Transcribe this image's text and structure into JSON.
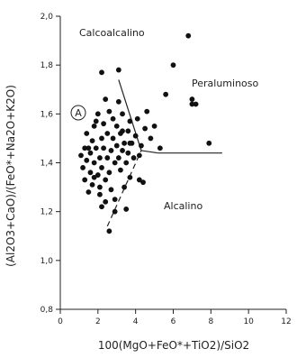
{
  "chart_data": {
    "type": "scatter",
    "xlabel": "100(MgO+FeO*+TiO2)/SiO2",
    "ylabel": "(Al2O3+CaO)/(FeO*+Na2O+K2O)",
    "xlim": [
      0,
      12
    ],
    "ylim": [
      0.8,
      2.0
    ],
    "xticks": [
      0,
      2,
      4,
      6,
      8,
      10,
      12
    ],
    "yticks": [
      0.8,
      1.0,
      1.2,
      1.4,
      1.6,
      1.8,
      2.0
    ],
    "ytick_labels": [
      "0,8",
      "1,0",
      "1,2",
      "1,4",
      "1,6",
      "1,8",
      "2,0"
    ],
    "grid": false,
    "annotations": {
      "calcoalcalino": "Calcoalcalino",
      "peraluminoso": "Peraluminoso",
      "alcalino": "Alcalino",
      "field_a": "A"
    },
    "boundaries": [
      {
        "style": "solid",
        "points": [
          [
            3.1,
            1.74
          ],
          [
            4.3,
            1.45
          ]
        ]
      },
      {
        "style": "solid",
        "points": [
          [
            4.3,
            1.45
          ],
          [
            5.2,
            1.44
          ]
        ]
      },
      {
        "style": "solid",
        "points": [
          [
            5.2,
            1.44
          ],
          [
            8.6,
            1.44
          ]
        ]
      },
      {
        "style": "dashed",
        "points": [
          [
            2.5,
            1.14
          ],
          [
            4.3,
            1.45
          ]
        ]
      }
    ],
    "series": [
      {
        "x": [
          1.1,
          1.2,
          1.3,
          1.3,
          1.4,
          1.4,
          1.5,
          1.6,
          1.6,
          1.7,
          1.7,
          1.8,
          1.8,
          1.9,
          2.0,
          2.0,
          2.1,
          2.1,
          2.2,
          2.2,
          2.2,
          2.3,
          2.3,
          2.4,
          2.4,
          2.5,
          2.5,
          2.6,
          2.6,
          2.7,
          2.7,
          2.8,
          2.8,
          2.9,
          2.9,
          3.0,
          3.0,
          3.1,
          3.1,
          3.2,
          3.2,
          3.3,
          3.3,
          3.4,
          3.4,
          3.5,
          3.5,
          3.6,
          3.6,
          3.7,
          3.7,
          3.8,
          3.9,
          4.0,
          4.1,
          4.2,
          4.3,
          4.4,
          4.5,
          4.6,
          4.8,
          5.0,
          5.3,
          5.6,
          6.0,
          6.8,
          7.0,
          7.2,
          7.9,
          7.0,
          2.6,
          2.2,
          3.1,
          1.5,
          1.8,
          2.1,
          2.4,
          2.9,
          3.3,
          3.7,
          4.2,
          1.9
        ],
        "y": [
          1.43,
          1.38,
          1.46,
          1.33,
          1.41,
          1.52,
          1.28,
          1.44,
          1.36,
          1.49,
          1.31,
          1.4,
          1.55,
          1.46,
          1.35,
          1.6,
          1.42,
          1.27,
          1.5,
          1.38,
          1.22,
          1.46,
          1.56,
          1.33,
          1.66,
          1.42,
          1.52,
          1.36,
          1.61,
          1.45,
          1.29,
          1.5,
          1.58,
          1.4,
          1.2,
          1.47,
          1.55,
          1.42,
          1.65,
          1.37,
          1.52,
          1.45,
          1.6,
          1.3,
          1.48,
          1.21,
          1.4,
          1.53,
          1.44,
          1.34,
          1.57,
          1.48,
          1.42,
          1.51,
          1.58,
          1.33,
          1.47,
          1.32,
          1.54,
          1.61,
          1.5,
          1.55,
          1.46,
          1.68,
          1.8,
          1.92,
          1.64,
          1.64,
          1.48,
          1.66,
          1.12,
          1.77,
          1.78,
          1.46,
          1.34,
          1.3,
          1.24,
          1.25,
          1.53,
          1.48,
          1.43,
          1.57
        ]
      }
    ]
  }
}
